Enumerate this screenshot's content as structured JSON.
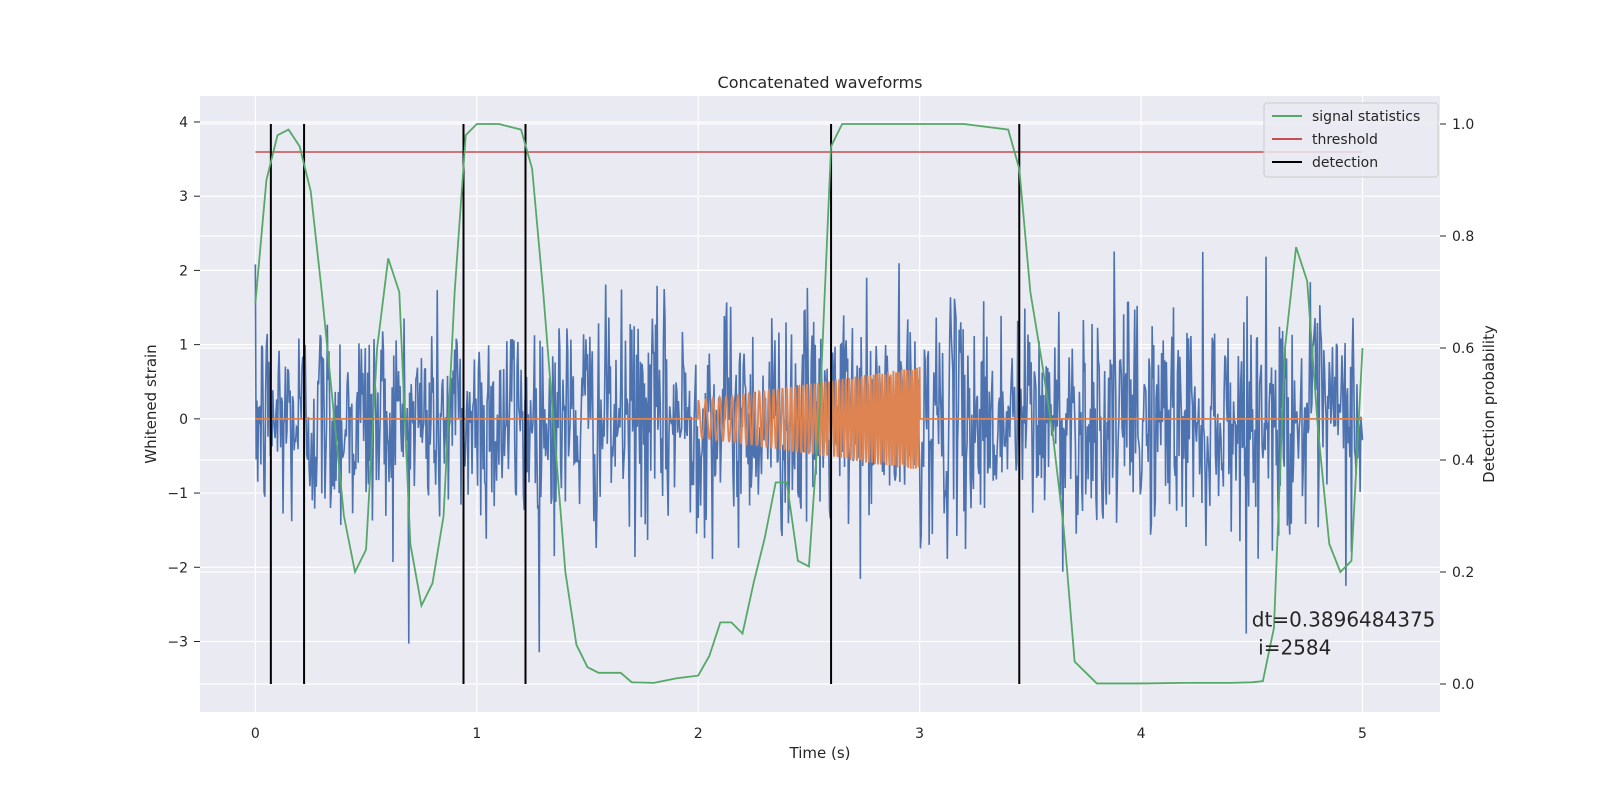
{
  "chart_data": {
    "type": "line",
    "title": "Concatenated waveforms",
    "xlabel": "Time (s)",
    "ylabel": "Whitened strain",
    "y2label": "Detection probability",
    "xlim": [
      -0.25,
      5.35
    ],
    "ylim": [
      -3.95,
      4.35
    ],
    "y2lim": [
      -0.05,
      1.05
    ],
    "x_ticks": [
      0,
      1,
      2,
      3,
      4,
      5
    ],
    "y_ticks": [
      -3,
      -2,
      -1,
      0,
      1,
      2,
      3,
      4
    ],
    "y2_ticks": [
      0.0,
      0.2,
      0.4,
      0.6,
      0.8,
      1.0
    ],
    "x_tick_labels": [
      "0",
      "1",
      "2",
      "3",
      "4",
      "5"
    ],
    "y_tick_labels": [
      "−3",
      "−2",
      "−1",
      "0",
      "1",
      "2",
      "3",
      "4"
    ],
    "y2_tick_labels": [
      "0.0",
      "0.2",
      "0.4",
      "0.6",
      "0.8",
      "1.0"
    ],
    "grid": true,
    "legend_position": "top-right",
    "colors": {
      "background": "#eaeaf2",
      "grid": "#ffffff",
      "strain": "#4c72b0",
      "injection": "#dd8452",
      "signal_statistics": "#55a868",
      "threshold": "#c44e52",
      "detection": "#000000"
    },
    "legend": [
      {
        "label": "signal statistics",
        "color": "#55a868"
      },
      {
        "label": "threshold",
        "color": "#c44e52"
      },
      {
        "label": "detection",
        "color": "#000000"
      }
    ],
    "strain_noise": {
      "x_range": [
        0,
        5
      ],
      "std": 0.75
    },
    "injection": {
      "flat_x_range": [
        0,
        5
      ],
      "chirp_x_range": [
        2.0,
        3.0
      ],
      "amplitude_start": 0.25,
      "amplitude_end": 0.7
    },
    "threshold_value": 0.95,
    "threshold_x_range": [
      0,
      5
    ],
    "detections_x": [
      0.07,
      0.22,
      0.94,
      1.22,
      2.6,
      3.45
    ],
    "signal_statistics": {
      "x": [
        0,
        0.05,
        0.1,
        0.15,
        0.2,
        0.25,
        0.3,
        0.35,
        0.4,
        0.45,
        0.5,
        0.55,
        0.6,
        0.65,
        0.7,
        0.75,
        0.8,
        0.85,
        0.9,
        0.95,
        1.0,
        1.1,
        1.2,
        1.25,
        1.3,
        1.35,
        1.4,
        1.45,
        1.5,
        1.55,
        1.6,
        1.65,
        1.7,
        1.8,
        1.9,
        2.0,
        2.05,
        2.1,
        2.15,
        2.2,
        2.25,
        2.3,
        2.35,
        2.4,
        2.45,
        2.5,
        2.55,
        2.6,
        2.65,
        2.7,
        2.8,
        3.0,
        3.2,
        3.4,
        3.45,
        3.5,
        3.55,
        3.6,
        3.65,
        3.7,
        3.8,
        4.0,
        4.2,
        4.4,
        4.5,
        4.55,
        4.6,
        4.65,
        4.7,
        4.75,
        4.8,
        4.85,
        4.9,
        4.95,
        5.0
      ],
      "y": [
        0.68,
        0.9,
        0.98,
        0.99,
        0.96,
        0.88,
        0.7,
        0.5,
        0.3,
        0.2,
        0.24,
        0.6,
        0.76,
        0.7,
        0.25,
        0.14,
        0.18,
        0.3,
        0.7,
        0.98,
        1.0,
        1.0,
        0.99,
        0.92,
        0.7,
        0.45,
        0.2,
        0.07,
        0.03,
        0.02,
        0.02,
        0.02,
        0.003,
        0.002,
        0.01,
        0.015,
        0.05,
        0.11,
        0.11,
        0.09,
        0.18,
        0.26,
        0.36,
        0.36,
        0.22,
        0.21,
        0.5,
        0.96,
        1.0,
        1.0,
        1.0,
        1.0,
        1.0,
        0.99,
        0.92,
        0.7,
        0.58,
        0.45,
        0.28,
        0.04,
        0.001,
        0.001,
        0.002,
        0.002,
        0.003,
        0.005,
        0.1,
        0.6,
        0.78,
        0.72,
        0.45,
        0.25,
        0.2,
        0.22,
        0.6
      ]
    },
    "annotation": {
      "line1": "dt=0.3896484375",
      "line2": " i=2584",
      "x": 4.5,
      "y": -2.8
    }
  }
}
